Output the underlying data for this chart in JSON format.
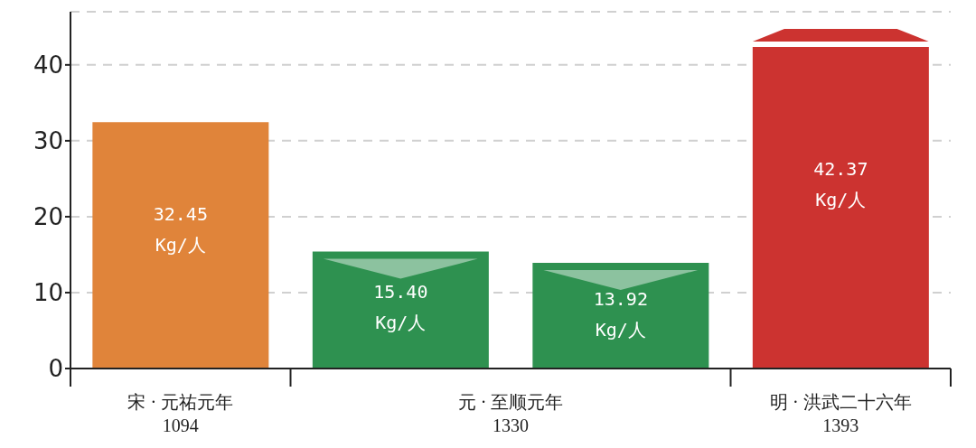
{
  "chart_data": {
    "type": "bar",
    "categories": [
      "宋 · 元祐元年 1094",
      "元 · 至顺元年 1330",
      null,
      "明 · 洪武二十六年 1393"
    ],
    "values": [
      32.45,
      15.4,
      13.92,
      42.37
    ],
    "colors": [
      "#e0843a",
      "#2e9150",
      "#2e9150",
      "#cc3330"
    ],
    "value_labels": [
      "32.45 Kg/人",
      "15.40 Kg/人",
      "13.92 Kg/人",
      "42.37 Kg/人"
    ],
    "ylim": [
      0,
      47
    ],
    "yticks": [
      0,
      10,
      20,
      30,
      40
    ],
    "grid": "y"
  }
}
